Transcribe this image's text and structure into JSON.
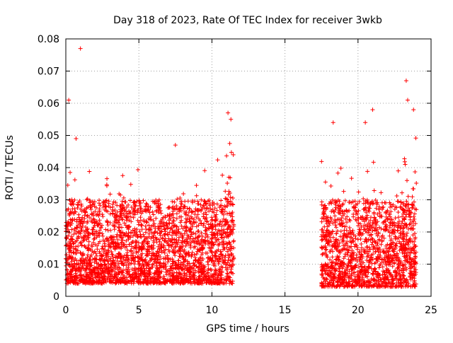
{
  "chart_data": {
    "type": "scatter",
    "title": "Day 318 of 2023, Rate Of TEC Index for receiver 3wkb",
    "xlabel": "GPS time / hours",
    "ylabel": "ROTI / TECUs",
    "xlim": [
      0,
      25
    ],
    "ylim": [
      0,
      0.08
    ],
    "xticks": [
      0,
      5,
      10,
      15,
      20,
      25
    ],
    "xtick_labels": [
      "0",
      "5",
      "10",
      "15",
      "20",
      "25"
    ],
    "yticks": [
      0,
      0.01,
      0.02,
      0.03,
      0.04,
      0.05,
      0.06,
      0.07,
      0.08
    ],
    "ytick_labels": [
      "0",
      "0.01",
      "0.02",
      "0.03",
      "0.04",
      "0.05",
      "0.06",
      "0.07",
      "0.08"
    ],
    "grid": true,
    "marker": "+",
    "color": "#ff0000",
    "series": [
      {
        "name": "ROTI",
        "segments": [
          {
            "x_start": 0.0,
            "x_end": 11.5,
            "typical_range": [
              0.004,
              0.03
            ]
          },
          {
            "x_start": 17.5,
            "x_end": 24.0,
            "typical_range": [
              0.003,
              0.03
            ]
          }
        ],
        "notable_points": [
          {
            "x": 1.0,
            "y": 0.077
          },
          {
            "x": 0.2,
            "y": 0.061
          },
          {
            "x": 0.7,
            "y": 0.049
          },
          {
            "x": 7.5,
            "y": 0.047
          },
          {
            "x": 11.1,
            "y": 0.057
          },
          {
            "x": 11.3,
            "y": 0.055
          },
          {
            "x": 18.3,
            "y": 0.054
          },
          {
            "x": 21.0,
            "y": 0.058
          },
          {
            "x": 20.5,
            "y": 0.054
          },
          {
            "x": 23.3,
            "y": 0.067
          },
          {
            "x": 23.4,
            "y": 0.061
          },
          {
            "x": 23.8,
            "y": 0.058
          }
        ]
      }
    ]
  }
}
